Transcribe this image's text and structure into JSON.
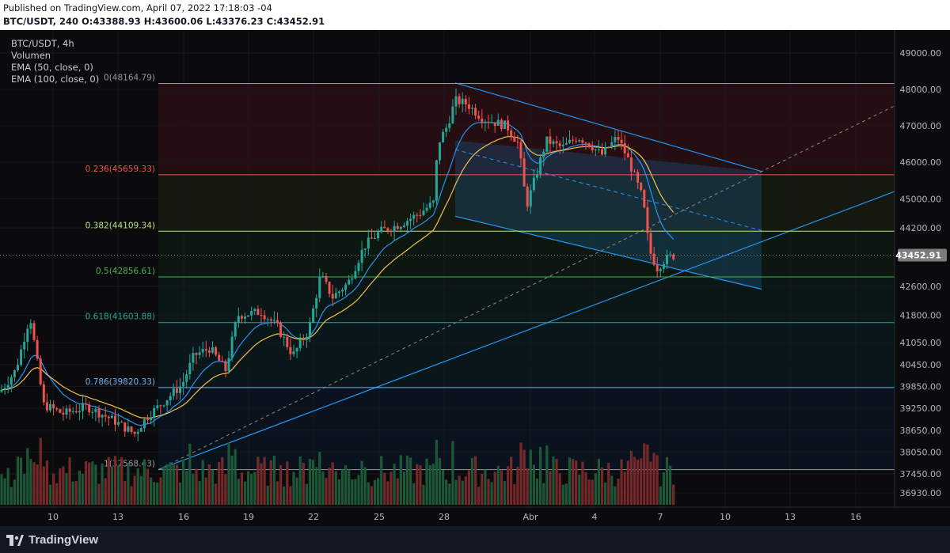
{
  "header": {
    "published": "Published on TradingView.com, April 07, 2022 17:18:03 -04",
    "ohlc": "BTC/USDT, 240  O:43388.93 H:43600.06 L:43376.23 C:43452.91"
  },
  "legend": {
    "symbol": "BTC/USDT, 4h",
    "volume": "Volumen",
    "ema50": "EMA (50, close, 0)",
    "ema100": "EMA (100, close, 0)"
  },
  "footer": {
    "brand": "TradingView"
  },
  "colors": {
    "background": "#0b0b0d",
    "up": "#26a69a",
    "down": "#ef5350",
    "ema50": "#2196f3",
    "ema100": "#f2c14e",
    "channel": "#2196f3",
    "price_label_bg": "#7c7c7c"
  },
  "chart_data": {
    "type": "candlestick",
    "symbol": "BTC/USDT",
    "timeframe": "4h",
    "y_ticks": [
      49000,
      48000,
      47000,
      46000,
      45000,
      44200,
      43452.91,
      42600,
      41800,
      41050,
      40450,
      39850,
      39250,
      38650,
      38050,
      37450,
      36930
    ],
    "y_tick_labels": [
      "49000.00",
      "48000.00",
      "47000.00",
      "46000.00",
      "45000.00",
      "44200.00",
      "43452.91",
      "42600.00",
      "41800.00",
      "41050.00",
      "40450.00",
      "39850.00",
      "39250.00",
      "38650.00",
      "38050.00",
      "37450.00",
      "36930.00"
    ],
    "last_price": 43452.91,
    "last_price_label": "43452.91",
    "x_ticks": [
      "10",
      "13",
      "16",
      "19",
      "22",
      "25",
      "28",
      "Abr",
      "4",
      "7",
      "10",
      "13",
      "16"
    ],
    "fib_levels": [
      {
        "label": "0(48164.79)",
        "value": 48164.79,
        "color": "#9598a1"
      },
      {
        "label": "0.236(45659.33)",
        "value": 45659.33,
        "color": "#ef5350"
      },
      {
        "label": "0.382(44109.34)",
        "value": 44109.34,
        "color": "#c0e27a"
      },
      {
        "label": "0.5(42856.61)",
        "value": 42856.61,
        "color": "#4caf50"
      },
      {
        "label": "0.618(41603.88)",
        "value": 41603.88,
        "color": "#26a69a"
      },
      {
        "label": "0.786(39820.33)",
        "value": 39820.33,
        "color": "#64b5f6"
      },
      {
        "label": "1(37568.43)",
        "value": 37568.43,
        "color": "#9598a1"
      }
    ],
    "ohlc_last": {
      "open": 43388.93,
      "high": 43600.06,
      "low": 43376.23,
      "close": 43452.91
    }
  }
}
